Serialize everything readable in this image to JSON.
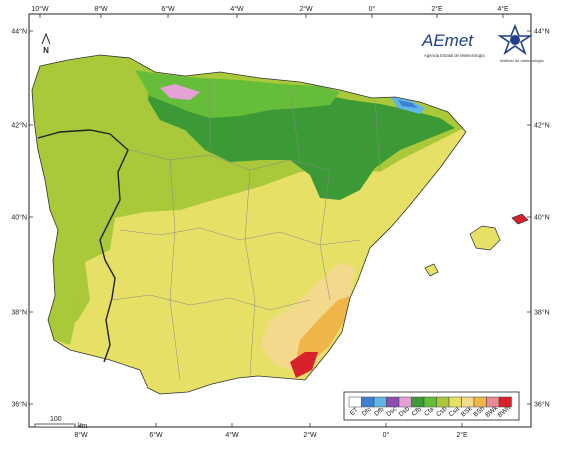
{
  "map": {
    "lon_ticks_top": [
      "10°W",
      "8°W",
      "6°W",
      "4°W",
      "2°W",
      "0°",
      "2°E",
      "4°E"
    ],
    "lon_ticks_bottom": [
      "8°W",
      "6°W",
      "4°W",
      "2°W",
      "0°",
      "2°E"
    ],
    "lat_ticks_left": [
      "44°N",
      "42°N",
      "40°N",
      "38°N",
      "36°N"
    ],
    "lat_ticks_right": [
      "44°N",
      "42°N",
      "40°N",
      "38°N",
      "36°N"
    ],
    "north_label": "N",
    "scale_bar": {
      "value": "100",
      "unit": "km"
    }
  },
  "logos": {
    "aemet_wordmark": "AEmet",
    "aemet_subtitle": "Agencia Estatal de Meteorología",
    "ipma_subtitle": "instituto de meteorologia"
  },
  "legend": {
    "classes": [
      {
        "label": "ET",
        "color": "#ffffff"
      },
      {
        "label": "Dfc",
        "color": "#3e7fd0"
      },
      {
        "label": "Dfb",
        "color": "#60b6e6"
      },
      {
        "label": "Dsc",
        "color": "#8a4fb3"
      },
      {
        "label": "Dsb",
        "color": "#e3a1d6"
      },
      {
        "label": "Cfb",
        "color": "#3b9a35"
      },
      {
        "label": "Cfa",
        "color": "#66bd3a"
      },
      {
        "label": "Csb",
        "color": "#a9c93a"
      },
      {
        "label": "Csa",
        "color": "#e6e066"
      },
      {
        "label": "BSk",
        "color": "#f3d98b"
      },
      {
        "label": "BSh",
        "color": "#f0b548"
      },
      {
        "label": "BWk",
        "color": "#e88a95"
      },
      {
        "label": "BWh",
        "color": "#d8212a"
      }
    ]
  }
}
